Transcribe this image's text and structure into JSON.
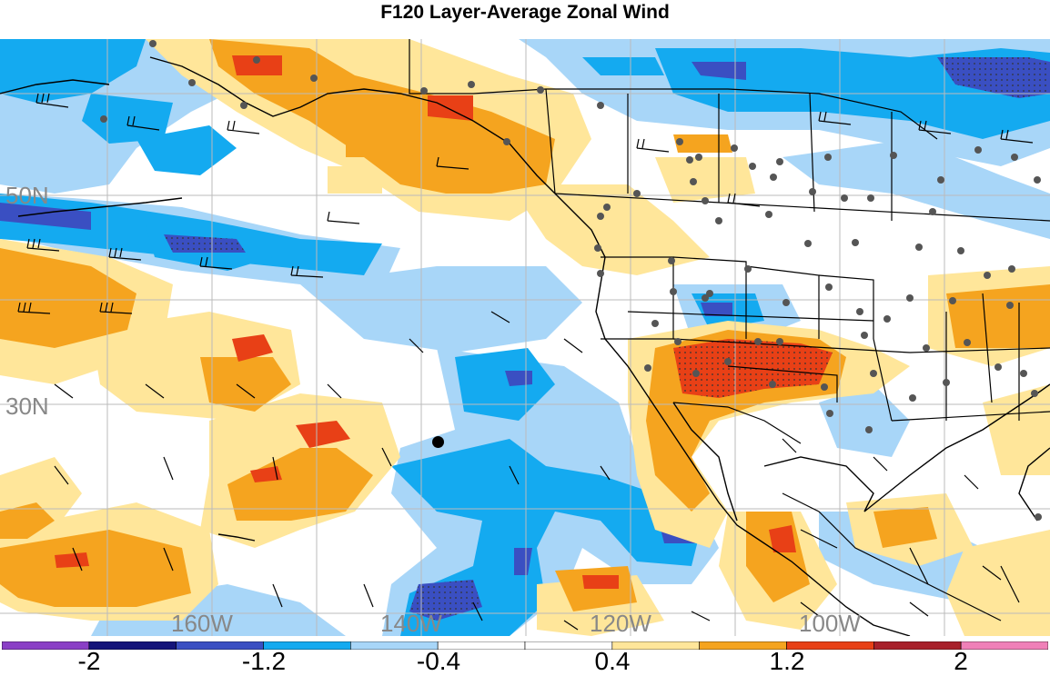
{
  "title": "F120 Layer-Average Zonal Wind",
  "latitude_labels": [
    "50N",
    "30N"
  ],
  "longitude_labels": [
    "160W",
    "140W",
    "120W",
    "100W"
  ],
  "colorbar": {
    "tick_labels": [
      "-2",
      "-1.2",
      "-0.4",
      "0.4",
      "1.2",
      "2"
    ],
    "colors": [
      "#8a3fc6",
      "#14147a",
      "#3a4fc2",
      "#14aaf0",
      "#a8d6f8",
      "#ffffff",
      "#ffe69a",
      "#f5a41f",
      "#e84016",
      "#a8202a",
      "#f080b8"
    ]
  },
  "marker_color": "#000000"
}
